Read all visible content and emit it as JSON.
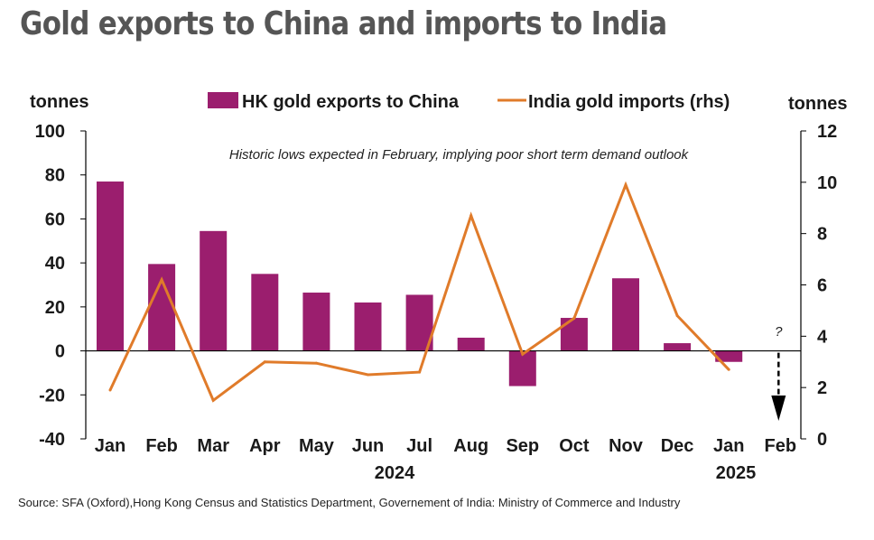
{
  "title": "Gold exports to China and imports to India",
  "source": "Source: SFA (Oxford),Hong Kong Census and Statistics Department, Governement of India: Ministry of Commerce and Industry",
  "colors": {
    "bars": "#9b1e6e",
    "line": "#e07b2a",
    "axis": "#000000"
  },
  "chart_data": {
    "type": "bar",
    "categories": [
      "Jan",
      "Feb",
      "Mar",
      "Apr",
      "May",
      "Jun",
      "Jul",
      "Aug",
      "Sep",
      "Oct",
      "Nov",
      "Dec",
      "Jan",
      "Feb"
    ],
    "year_labels": [
      "2024",
      "2025"
    ],
    "series": [
      {
        "name": "HK gold exports to China",
        "type": "bar",
        "axis": "left",
        "values": [
          77,
          39.5,
          54.5,
          35,
          26.5,
          22,
          25.5,
          6,
          -16,
          15,
          33,
          3.5,
          -5,
          null
        ]
      },
      {
        "name": "India gold imports (rhs)",
        "type": "line",
        "axis": "right",
        "values": [
          1.9,
          6.2,
          1.5,
          3,
          2.95,
          2.5,
          2.6,
          8.7,
          3.3,
          4.7,
          9.9,
          4.8,
          2.7,
          null
        ]
      }
    ],
    "ylabel": "tonnes",
    "ylabel_right": "tonnes",
    "ylim": [
      -40,
      100
    ],
    "yticks": [
      -40,
      -20,
      0,
      20,
      40,
      60,
      80,
      100
    ],
    "ylim_right": [
      0,
      12
    ],
    "yticks_right": [
      0,
      2,
      4,
      6,
      8,
      10,
      12
    ],
    "legend_position": "top",
    "annotations": [
      {
        "text": "Historic lows expected in February, implying poor short term demand outlook"
      },
      {
        "text": "?",
        "category": "Feb",
        "arrow": "down"
      }
    ]
  }
}
